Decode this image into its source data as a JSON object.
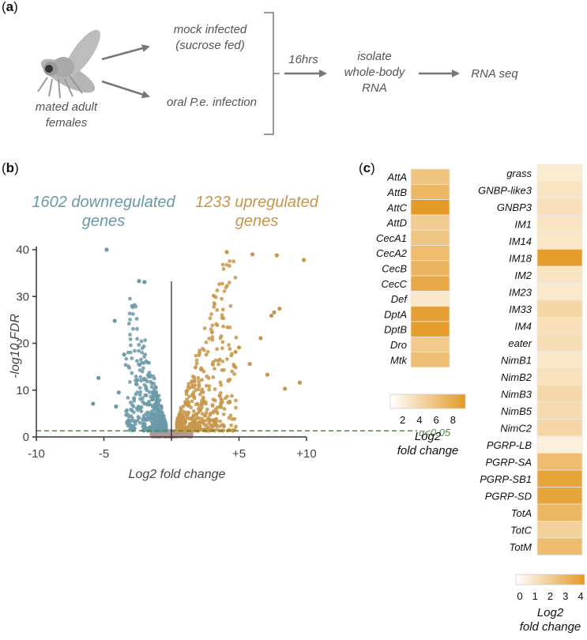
{
  "panel_a": {
    "label": "(a)",
    "bold_letter": "a",
    "mock_line1": "mock infected",
    "mock_line2": "(sucrose fed)",
    "oral_infection": "oral P.e. infection",
    "fly_line1": "mated adult",
    "fly_line2": "females",
    "time_label": "16hrs",
    "isolate_line1": "isolate",
    "isolate_line2": "whole-body",
    "isolate_line3": "RNA",
    "rnaseq": "RNA seq",
    "fly_icon": "fruit-fly-icon"
  },
  "panel_b_label": "(b)",
  "panel_c_label": "(c)",
  "chart_data": [
    {
      "type": "scatter",
      "name": "volcano",
      "annotation_down_line1": "1602 downregulated",
      "annotation_down_line2": "genes",
      "annotation_up_line1": "1233 upregulated",
      "annotation_up_line2": "genes",
      "n_down": 1602,
      "n_up": 1233,
      "xlabel": "Log2 fold change",
      "ylabel": "-log10 FDR",
      "xlim": [
        -10,
        10
      ],
      "ylim": [
        0,
        40
      ],
      "xticks": [
        -10,
        -5,
        0,
        5,
        10
      ],
      "xtick_labels": [
        "-10",
        "-5",
        "",
        "+5",
        "+10"
      ],
      "yticks": [
        0,
        10,
        20,
        30,
        40
      ],
      "ytick_labels": [
        "0",
        "10",
        "20",
        "30",
        "40"
      ],
      "threshold_y": 1.3,
      "threshold_label": "q<0.05",
      "colors": {
        "down": "#6a99a8",
        "up": "#c8964a",
        "ns": "#b09a9a",
        "threshold": "#4c8a3c"
      },
      "down_outliers": [
        {
          "x": -4.8,
          "y": 40
        },
        {
          "x": -2.4,
          "y": 33.3
        },
        {
          "x": -2.0,
          "y": 33.1
        },
        {
          "x": -4.2,
          "y": 24.8
        },
        {
          "x": -5.4,
          "y": 12.6
        },
        {
          "x": -5.8,
          "y": 7.1
        },
        {
          "x": -4.1,
          "y": 6.5
        },
        {
          "x": -3.5,
          "y": 17.6
        },
        {
          "x": -3.9,
          "y": 9.5
        }
      ],
      "up_outliers": [
        {
          "x": 9.8,
          "y": 37.8
        },
        {
          "x": 7.8,
          "y": 38.8
        },
        {
          "x": 6.0,
          "y": 39.0
        },
        {
          "x": 4.1,
          "y": 39.5
        },
        {
          "x": 8.0,
          "y": 27.4
        },
        {
          "x": 7.6,
          "y": 26.6
        },
        {
          "x": 7.4,
          "y": 25.9
        },
        {
          "x": 6.6,
          "y": 21.1
        },
        {
          "x": 5.0,
          "y": 19.1
        },
        {
          "x": 7.1,
          "y": 13.3
        },
        {
          "x": 9.5,
          "y": 11.6
        },
        {
          "x": 8.4,
          "y": 10.3
        },
        {
          "x": 4.3,
          "y": 7.4
        },
        {
          "x": 5.8,
          "y": 15.6
        }
      ]
    },
    {
      "type": "heatmap",
      "name": "heatmap-left",
      "genes": [
        "AttA",
        "AttB",
        "AttC",
        "AttD",
        "CecA1",
        "CecA2",
        "CecB",
        "CecC",
        "Def",
        "DptA",
        "DptB",
        "Dro",
        "Mtk"
      ],
      "values": [
        5.5,
        6.5,
        9.0,
        4.8,
        5.3,
        6.2,
        6.8,
        7.8,
        2.5,
        8.5,
        8.8,
        5.0,
        6.0
      ],
      "colorbar": {
        "min": 1,
        "max": 9,
        "ticks": [
          2,
          4,
          6,
          8
        ],
        "tick_labels": [
          "2",
          "4",
          "6",
          "8"
        ],
        "label_line1": "Log2",
        "label_line2": "fold change"
      }
    },
    {
      "type": "heatmap",
      "name": "heatmap-right",
      "genes": [
        "grass",
        "GNBP-like3",
        "GNBP3",
        "IM1",
        "IM14",
        "IM18",
        "IM2",
        "IM23",
        "IM33",
        "IM4",
        "eater",
        "NimB1",
        "NimB2",
        "NimB3",
        "NimB5",
        "NimC2",
        "PGRP-LB",
        "PGRP-SA",
        "PGRP-SB1",
        "PGRP-SD",
        "TotA",
        "TotC",
        "TotM"
      ],
      "values": [
        0.6,
        0.9,
        1.1,
        0.9,
        0.8,
        3.9,
        0.9,
        0.7,
        1.5,
        1.1,
        1.2,
        0.8,
        1.0,
        1.4,
        1.3,
        1.5,
        0.4,
        2.6,
        3.6,
        3.6,
        2.8,
        1.7,
        2.6
      ],
      "colorbar": {
        "min": 0,
        "max": 4,
        "ticks": [
          0,
          1,
          2,
          3,
          4
        ],
        "tick_labels": [
          "0",
          "1",
          "2",
          "3",
          "4"
        ],
        "label_line1": "Log2",
        "label_line2": "fold change"
      }
    }
  ]
}
